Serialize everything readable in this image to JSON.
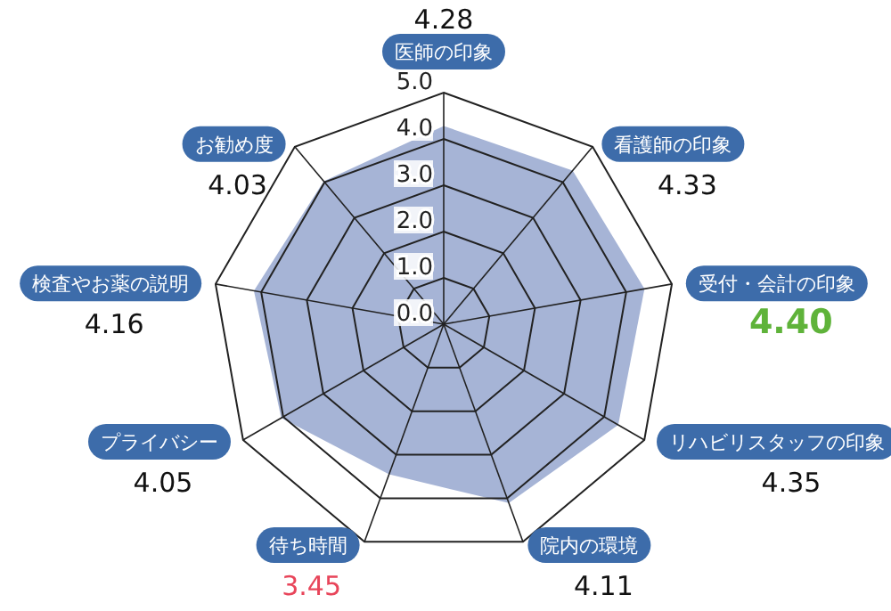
{
  "chart_data": {
    "type": "radar",
    "categories": [
      "医師の印象",
      "看護師の印象",
      "受付・会計の印象",
      "リハビリスタッフの印象",
      "院内の環境",
      "待ち時間",
      "プライバシー",
      "検査やお薬の説明",
      "お勧め度"
    ],
    "series": [
      {
        "color": "#a6b4d6",
        "values": [
          4.28,
          4.33,
          4.4,
          4.35,
          4.11,
          3.45,
          4.05,
          4.16,
          4.03
        ]
      }
    ],
    "ylim": [
      0,
      5
    ],
    "yticks": [
      {
        "value": 0,
        "label": "0.0"
      },
      {
        "value": 1,
        "label": "1.0"
      },
      {
        "value": 2,
        "label": "2.0"
      },
      {
        "value": 3,
        "label": "3.0"
      },
      {
        "value": 4,
        "label": "4.0"
      },
      {
        "value": 5,
        "label": "5.0"
      }
    ],
    "grid": true,
    "value_labels": [
      "4.28",
      "4.33",
      "4.40",
      "4.35",
      "4.11",
      "3.45",
      "4.05",
      "4.16",
      "4.03"
    ]
  }
}
